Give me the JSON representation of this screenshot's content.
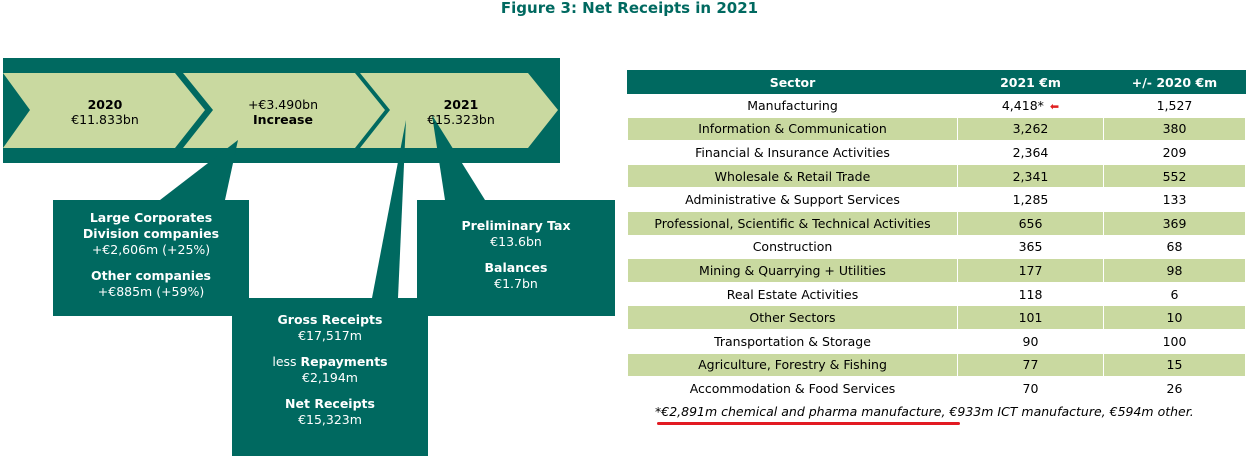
{
  "title": "Figure 3: Net Receipts in 2021",
  "flow": {
    "step1": {
      "line1": "2020",
      "line2": "€11.833bn"
    },
    "step2": {
      "line1": "+€3.490bn",
      "line2": "Increase"
    },
    "step3": {
      "line1": "2021",
      "line2": "€15.323bn"
    }
  },
  "box_left": {
    "heading": "Large Corporates Division companies",
    "value1": "+€2,606m (+25%)",
    "heading2": "Other companies",
    "value2": "+€885m (+59%)"
  },
  "box_middle": {
    "gross_label": "Gross Receipts",
    "gross_value": "€17,517m",
    "less_prefix": "less ",
    "repay_label": "Repayments",
    "repay_value": "€2,194m",
    "net_label": "Net Receipts",
    "net_value": "€15,323m"
  },
  "box_right": {
    "prelim_label": "Preliminary Tax",
    "prelim_value": "€13.6bn",
    "bal_label": "Balances",
    "bal_value": "€1.7bn"
  },
  "table": {
    "headers": [
      "Sector",
      "2021 €m",
      "+/- 2020 €m"
    ],
    "rows": [
      [
        "Manufacturing",
        "4,418*",
        "1,527"
      ],
      [
        "Information & Communication",
        "3,262",
        "380"
      ],
      [
        "Financial & Insurance Activities",
        "2,364",
        "209"
      ],
      [
        "Wholesale & Retail Trade",
        "2,341",
        "552"
      ],
      [
        "Administrative & Support Services",
        "1,285",
        "133"
      ],
      [
        "Professional, Scientific & Technical Activities",
        "656",
        "369"
      ],
      [
        "Construction",
        "365",
        "68"
      ],
      [
        "Mining & Quarrying + Utilities",
        "177",
        "98"
      ],
      [
        "Real Estate Activities",
        "118",
        "6"
      ],
      [
        "Other Sectors",
        "101",
        "10"
      ],
      [
        "Transportation & Storage",
        "90",
        "100"
      ],
      [
        "Agriculture, Forestry & Fishing",
        "77",
        "15"
      ],
      [
        "Accommodation & Food Services",
        "70",
        "26"
      ]
    ]
  },
  "footnote": "*€2,891m chemical and pharma manufacture, €933m ICT manufacture, €594m other.",
  "colors": {
    "dark_green": "#006960",
    "light_green": "#c9d9a0",
    "highlight_red": "#e21a22"
  }
}
